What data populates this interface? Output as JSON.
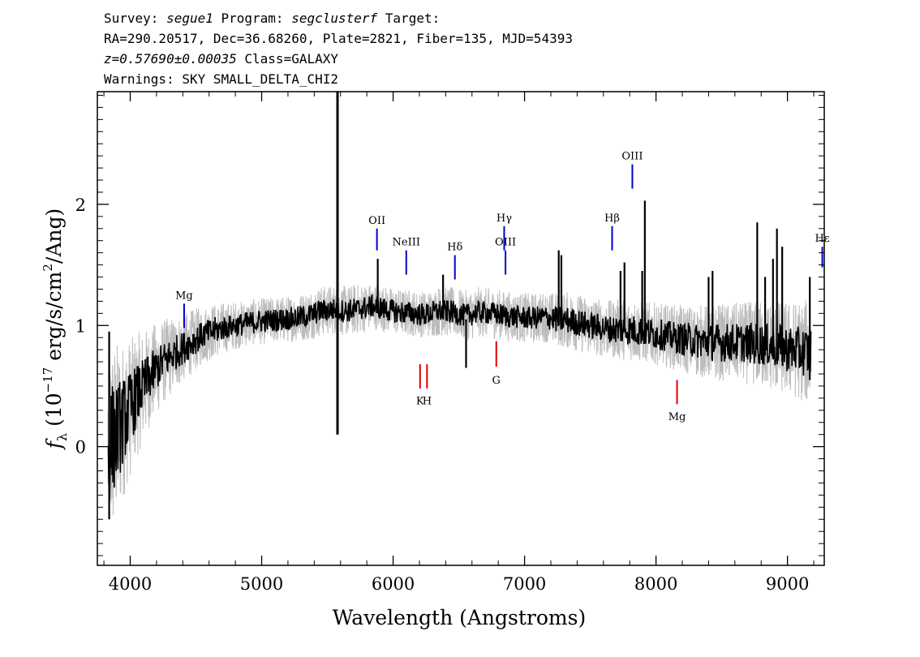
{
  "header": {
    "line1": {
      "a": "Survey: ",
      "b": "segue1",
      "c": " Program: ",
      "d": "segclusterf",
      "e": " Target:"
    },
    "line2": "RA=290.20517, Dec=36.68260, Plate=2821, Fiber=135, MJD=54393",
    "line3": {
      "a": "z=0.57690±0.00035",
      "b": " Class=GALAXY"
    },
    "line4": "Warnings: SKY SMALL_DELTA_CHI2"
  },
  "chart_data": {
    "type": "line",
    "xlabel": "Wavelength (Angstroms)",
    "ylabel": {
      "f": "f",
      "sub": "λ",
      "pre": " (10",
      "exp": "−17",
      "mid": " erg/s/cm",
      "exp2": "2",
      "post": "/Ang)"
    },
    "xlim": [
      3750,
      9280
    ],
    "ylim": [
      -0.98,
      2.93
    ],
    "x_ticks": [
      4000,
      5000,
      6000,
      7000,
      8000,
      9000
    ],
    "x_tick_labels": [
      "4000",
      "5000",
      "6000",
      "7000",
      "8000",
      "9000"
    ],
    "y_ticks": [
      0,
      1,
      2
    ],
    "y_tick_labels": [
      "0",
      "1",
      "2"
    ],
    "grid": false,
    "series": [
      {
        "style": "noisy-flux",
        "color": "#bbbbbb",
        "x": [
          3830,
          3880,
          3950,
          4050,
          4150,
          4250,
          4350,
          4450,
          4550,
          4650,
          4750,
          4850,
          4950,
          5050,
          5150,
          5250,
          5350,
          5450,
          5550,
          5650,
          5750,
          5850,
          5950,
          6050,
          6150,
          6250,
          6350,
          6450,
          6550,
          6650,
          6750,
          6850,
          6950,
          7050,
          7150,
          7250,
          7350,
          7450,
          7550,
          7650,
          7750,
          7850,
          7950,
          8050,
          8150,
          8250,
          8350,
          8450,
          8550,
          8650,
          8750,
          8850,
          8950,
          9050,
          9150,
          9180
        ],
        "y": [
          0.02,
          0.08,
          0.22,
          0.42,
          0.58,
          0.7,
          0.78,
          0.85,
          0.92,
          0.96,
          0.99,
          1.01,
          1.03,
          1.04,
          1.05,
          1.06,
          1.08,
          1.12,
          1.13,
          1.12,
          1.14,
          1.16,
          1.13,
          1.11,
          1.1,
          1.09,
          1.12,
          1.11,
          1.08,
          1.11,
          1.1,
          1.08,
          1.07,
          1.06,
          1.07,
          1.05,
          1.04,
          1.01,
          0.99,
          0.97,
          0.97,
          0.96,
          0.94,
          0.92,
          0.9,
          0.88,
          0.87,
          0.86,
          0.86,
          0.86,
          0.85,
          0.84,
          0.82,
          0.8,
          0.78,
          0.78
        ],
        "noise": [
          0.55,
          0.5,
          0.4,
          0.32,
          0.26,
          0.22,
          0.19,
          0.17,
          0.15,
          0.14,
          0.13,
          0.12,
          0.12,
          0.12,
          0.12,
          0.12,
          0.13,
          0.13,
          0.13,
          0.13,
          0.13,
          0.12,
          0.12,
          0.12,
          0.12,
          0.12,
          0.13,
          0.13,
          0.13,
          0.13,
          0.13,
          0.13,
          0.13,
          0.13,
          0.13,
          0.14,
          0.15,
          0.15,
          0.15,
          0.15,
          0.16,
          0.16,
          0.16,
          0.16,
          0.17,
          0.18,
          0.19,
          0.2,
          0.2,
          0.21,
          0.22,
          0.23,
          0.24,
          0.25,
          0.27,
          0.28
        ]
      },
      {
        "style": "smoothed-flux",
        "color": "#000000",
        "x": [
          3830,
          3880,
          3950,
          4050,
          4150,
          4250,
          4350,
          4450,
          4550,
          4650,
          4750,
          4850,
          4950,
          5050,
          5150,
          5250,
          5350,
          5450,
          5550,
          5650,
          5750,
          5850,
          5950,
          6050,
          6150,
          6250,
          6350,
          6450,
          6550,
          6650,
          6750,
          6850,
          6950,
          7050,
          7150,
          7250,
          7350,
          7450,
          7550,
          7650,
          7750,
          7850,
          7950,
          8050,
          8150,
          8250,
          8350,
          8450,
          8550,
          8650,
          8750,
          8850,
          8950,
          9050,
          9150,
          9180
        ],
        "y": [
          0.02,
          0.08,
          0.22,
          0.42,
          0.58,
          0.7,
          0.78,
          0.85,
          0.92,
          0.96,
          0.99,
          1.01,
          1.03,
          1.04,
          1.05,
          1.06,
          1.08,
          1.12,
          1.13,
          1.12,
          1.14,
          1.16,
          1.13,
          1.11,
          1.1,
          1.09,
          1.12,
          1.11,
          1.08,
          1.11,
          1.1,
          1.08,
          1.07,
          1.06,
          1.07,
          1.05,
          1.04,
          1.01,
          0.99,
          0.97,
          0.97,
          0.96,
          0.94,
          0.92,
          0.9,
          0.88,
          0.87,
          0.86,
          0.86,
          0.86,
          0.85,
          0.84,
          0.82,
          0.8,
          0.78,
          0.78
        ],
        "noise": [
          0.32,
          0.28,
          0.22,
          0.16,
          0.12,
          0.1,
          0.09,
          0.08,
          0.07,
          0.07,
          0.06,
          0.06,
          0.06,
          0.06,
          0.06,
          0.06,
          0.06,
          0.06,
          0.06,
          0.06,
          0.06,
          0.06,
          0.06,
          0.06,
          0.06,
          0.06,
          0.06,
          0.06,
          0.06,
          0.06,
          0.06,
          0.06,
          0.06,
          0.06,
          0.06,
          0.07,
          0.07,
          0.07,
          0.07,
          0.07,
          0.08,
          0.08,
          0.08,
          0.08,
          0.08,
          0.09,
          0.09,
          0.1,
          0.1,
          0.1,
          0.11,
          0.11,
          0.12,
          0.12,
          0.13,
          0.14
        ],
        "features": [
          {
            "x": 5577,
            "y0": 0.1,
            "y1": 2.93
          },
          {
            "x": 5883,
            "y0": 1.1,
            "y1": 1.55
          },
          {
            "x": 6380,
            "y0": 1.05,
            "y1": 1.42
          },
          {
            "x": 6555,
            "y0": 0.65,
            "y1": 1.05
          },
          {
            "x": 7260,
            "y0": 1.0,
            "y1": 1.62
          },
          {
            "x": 7280,
            "y0": 1.0,
            "y1": 1.58
          },
          {
            "x": 7730,
            "y0": 0.95,
            "y1": 1.45
          },
          {
            "x": 7760,
            "y0": 0.95,
            "y1": 1.52
          },
          {
            "x": 7895,
            "y0": 0.92,
            "y1": 1.45
          },
          {
            "x": 7915,
            "y0": 0.92,
            "y1": 2.03
          },
          {
            "x": 8400,
            "y0": 0.85,
            "y1": 1.4
          },
          {
            "x": 8430,
            "y0": 0.85,
            "y1": 1.45
          },
          {
            "x": 8770,
            "y0": 0.8,
            "y1": 1.85
          },
          {
            "x": 8830,
            "y0": 0.75,
            "y1": 1.4
          },
          {
            "x": 8890,
            "y0": 0.72,
            "y1": 1.55
          },
          {
            "x": 8920,
            "y0": 0.72,
            "y1": 1.8
          },
          {
            "x": 8960,
            "y0": 0.7,
            "y1": 1.65
          },
          {
            "x": 9170,
            "y0": 0.55,
            "y1": 1.4
          },
          {
            "x": 3840,
            "y0": -0.6,
            "y1": 0.95
          }
        ]
      }
    ],
    "emission_lines": [
      {
        "label": "Mg",
        "x": 4410,
        "y0": 0.98,
        "y1": 1.18,
        "ly": 1.22,
        "color": "#0000cc"
      },
      {
        "label": "OII",
        "x": 5877,
        "y0": 1.62,
        "y1": 1.8,
        "ly": 1.84,
        "color": "#0000cc"
      },
      {
        "label": "NeIII",
        "x": 6100,
        "y0": 1.42,
        "y1": 1.62,
        "ly": 1.66,
        "color": "#0000cc"
      },
      {
        "label": "Hδ",
        "x": 6470,
        "y0": 1.38,
        "y1": 1.58,
        "ly": 1.62,
        "color": "#0000cc"
      },
      {
        "label": "Hγ",
        "x": 6845,
        "y0": 1.62,
        "y1": 1.82,
        "ly": 1.86,
        "color": "#0000cc"
      },
      {
        "label": "OIII",
        "x": 6855,
        "y0": 1.42,
        "y1": 1.62,
        "ly": 1.66,
        "color": "#0000cc"
      },
      {
        "label": "Hβ",
        "x": 7666,
        "y0": 1.62,
        "y1": 1.82,
        "ly": 1.86,
        "color": "#0000cc"
      },
      {
        "label": "OIII",
        "x": 7820,
        "y0": 2.13,
        "y1": 2.33,
        "ly": 2.37,
        "color": "#0000cc"
      },
      {
        "label": "Hε",
        "x": 9265,
        "y0": 1.48,
        "y1": 1.65,
        "ly": 1.69,
        "color": "#0000cc"
      }
    ],
    "absorption_lines": [
      {
        "label": "K",
        "x": 6205,
        "y0": 0.48,
        "y1": 0.68,
        "ly": 0.35,
        "color": "#dd0000"
      },
      {
        "label": "H",
        "x": 6258,
        "y0": 0.48,
        "y1": 0.68,
        "ly": 0.35,
        "color": "#dd0000"
      },
      {
        "label": "G",
        "x": 6785,
        "y0": 0.66,
        "y1": 0.87,
        "ly": 0.52,
        "color": "#dd0000"
      },
      {
        "label": "Mg",
        "x": 8160,
        "y0": 0.35,
        "y1": 0.55,
        "ly": 0.22,
        "color": "#dd0000"
      }
    ]
  }
}
